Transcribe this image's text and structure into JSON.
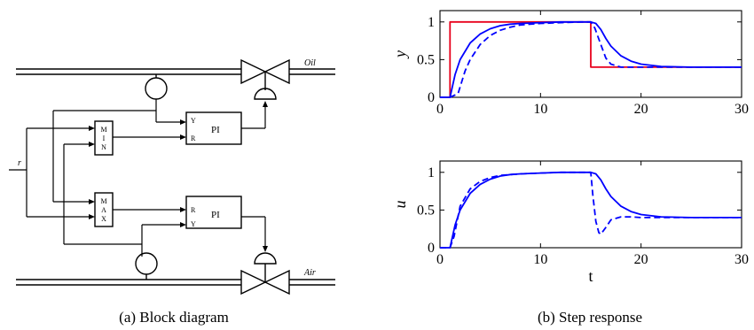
{
  "diagram": {
    "caption": "(a) Block diagram",
    "labels": {
      "oil": "Oil",
      "air": "Air",
      "input": "r",
      "min_block": [
        "M",
        "I",
        "N"
      ],
      "max_block": [
        "M",
        "A",
        "X"
      ],
      "pi_top": "PI",
      "pi_top_in_y": "Y",
      "pi_top_in_r": "R",
      "pi_bot": "PI",
      "pi_bot_in_r": "R",
      "pi_bot_in_y": "Y"
    }
  },
  "chart_data": [
    {
      "type": "line",
      "caption": "(b) Step response",
      "ylabel": "y",
      "xlabel": "",
      "xlim": [
        0,
        30
      ],
      "ylim": [
        0,
        1.15
      ],
      "xticks": [
        0,
        10,
        20,
        30
      ],
      "yticks": [
        0,
        0.5,
        1
      ],
      "ytick_labels": [
        "0",
        "0.5",
        "1"
      ],
      "xtick_labels": [
        "0",
        "10",
        "20",
        "30"
      ],
      "series": [
        {
          "style": "setpoint",
          "color": "#e8001c",
          "x": [
            0,
            1,
            1,
            15,
            15,
            30
          ],
          "y": [
            0,
            0,
            1,
            1,
            0.4,
            0.4
          ]
        },
        {
          "style": "solid",
          "color": "#0000ff",
          "x": [
            0,
            1,
            1.5,
            2,
            3,
            4,
            5,
            6,
            7,
            8,
            10,
            12,
            14,
            15,
            15.5,
            16,
            16.5,
            17,
            18,
            19,
            20,
            22,
            25,
            30
          ],
          "y": [
            0,
            0,
            0.3,
            0.5,
            0.72,
            0.84,
            0.91,
            0.95,
            0.97,
            0.98,
            0.99,
            1,
            1,
            1,
            0.98,
            0.9,
            0.78,
            0.68,
            0.55,
            0.48,
            0.44,
            0.41,
            0.4,
            0.4
          ]
        },
        {
          "style": "dashed",
          "color": "#0000ff",
          "x": [
            0,
            1,
            1.8,
            2.5,
            3,
            4,
            5,
            6,
            7,
            8,
            10,
            12,
            14,
            15,
            15.4,
            16,
            16.5,
            17,
            18,
            19,
            20,
            25,
            30
          ],
          "y": [
            0,
            0,
            0.05,
            0.35,
            0.5,
            0.7,
            0.82,
            0.89,
            0.93,
            0.96,
            0.98,
            0.99,
            1,
            1,
            0.92,
            0.7,
            0.52,
            0.44,
            0.4,
            0.4,
            0.4,
            0.4,
            0.4
          ]
        }
      ]
    },
    {
      "type": "line",
      "ylabel": "u",
      "xlabel": "t",
      "xlim": [
        0,
        30
      ],
      "ylim": [
        0,
        1.15
      ],
      "xticks": [
        0,
        10,
        20,
        30
      ],
      "yticks": [
        0,
        0.5,
        1
      ],
      "ytick_labels": [
        "0",
        "0.5",
        "1"
      ],
      "xtick_labels": [
        "0",
        "10",
        "20",
        "30"
      ],
      "series": [
        {
          "style": "solid",
          "color": "#0000ff",
          "x": [
            0,
            1,
            1.5,
            2,
            3,
            4,
            5,
            6,
            7,
            8,
            10,
            12,
            14,
            15,
            15.5,
            16,
            16.5,
            17,
            18,
            19,
            20,
            22,
            25,
            30
          ],
          "y": [
            0,
            0,
            0.3,
            0.5,
            0.72,
            0.84,
            0.91,
            0.95,
            0.97,
            0.98,
            0.99,
            1,
            1,
            1,
            0.98,
            0.9,
            0.78,
            0.68,
            0.55,
            0.48,
            0.44,
            0.41,
            0.4,
            0.4
          ]
        },
        {
          "style": "dashed",
          "color": "#0000ff",
          "x": [
            0,
            1,
            1.4,
            2,
            3,
            4,
            5,
            6,
            8,
            10,
            12,
            14,
            15,
            15.2,
            15.5,
            15.8,
            16,
            16.5,
            17,
            18,
            19,
            20,
            25,
            30
          ],
          "y": [
            0,
            0,
            0.15,
            0.55,
            0.78,
            0.88,
            0.93,
            0.96,
            0.98,
            0.99,
            1,
            1,
            1,
            0.7,
            0.35,
            0.2,
            0.18,
            0.27,
            0.37,
            0.41,
            0.41,
            0.4,
            0.4,
            0.4
          ]
        }
      ]
    }
  ]
}
